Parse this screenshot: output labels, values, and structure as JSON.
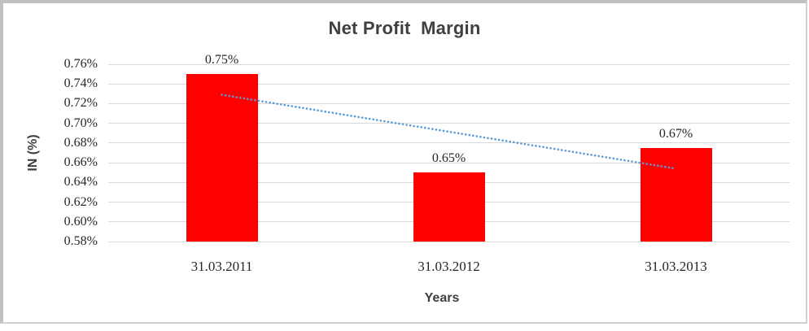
{
  "chart_data": {
    "type": "bar",
    "title": "Net Profit  Margin",
    "xlabel": "Years",
    "ylabel": "IN (%)",
    "categories": [
      "31.03.2011",
      "31.03.2012",
      "31.03.2013"
    ],
    "series": [
      {
        "name": "Net Profit Margin",
        "values": [
          0.75,
          0.65,
          0.675
        ],
        "data_labels": [
          "0.75%",
          "0.65%",
          "0.67%"
        ]
      }
    ],
    "ylim": [
      0.58,
      0.76
    ],
    "ytick_step": 0.02,
    "ytick_labels": [
      "0.58%",
      "0.60%",
      "0.62%",
      "0.64%",
      "0.66%",
      "0.68%",
      "0.70%",
      "0.72%",
      "0.74%",
      "0.76%"
    ],
    "grid": true,
    "legend_position": "none",
    "bar_color": "#ff0000",
    "trendline": {
      "style": "dotted",
      "color": "#5b9bd5",
      "start_category_index": 0,
      "end_category_index": 2,
      "start_value": 0.729,
      "end_value": 0.654
    }
  },
  "colors": {
    "background": "#ffffff",
    "gridline": "#d9d9d9",
    "title_text": "#404040",
    "axis_title_text": "#404040",
    "tick_text": "#262626",
    "frame_border": "#c0c0c0"
  }
}
